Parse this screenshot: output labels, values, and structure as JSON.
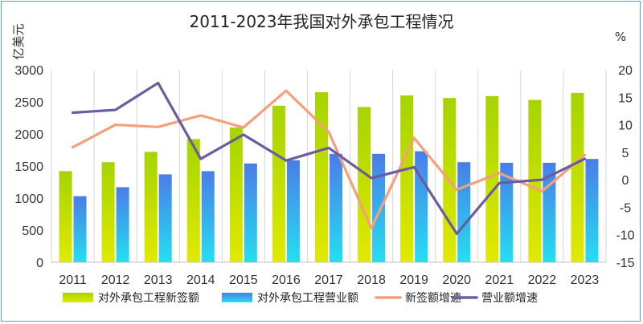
{
  "chart_data": {
    "type": "bar",
    "title": "2011-2023年我国对外承包工程情况",
    "y_left_label": "亿美元",
    "y_right_label": "%",
    "categories": [
      "2011",
      "2012",
      "2013",
      "2014",
      "2015",
      "2016",
      "2017",
      "2018",
      "2019",
      "2020",
      "2021",
      "2022",
      "2023"
    ],
    "y_left_ticks": [
      "0",
      "500",
      "1000",
      "1500",
      "2000",
      "2500",
      "3000"
    ],
    "y_right_ticks": [
      "-15",
      "-10",
      "-5",
      "0",
      "5",
      "10",
      "15",
      "20"
    ],
    "ylim_left": [
      0,
      3000
    ],
    "ylim_right": [
      -15,
      20
    ],
    "grid": "vertical",
    "legend_position": "bottom",
    "series": [
      {
        "name": "对外承包工程新签额",
        "type": "bar",
        "axis": "left",
        "color": "#a8d400",
        "values": [
          1420,
          1560,
          1720,
          1920,
          2100,
          2440,
          2650,
          2420,
          2600,
          2560,
          2590,
          2530,
          2640
        ]
      },
      {
        "name": "对外承包工程营业额",
        "type": "bar",
        "axis": "left",
        "color": "#4a90e2",
        "values": [
          1030,
          1170,
          1370,
          1420,
          1540,
          1590,
          1690,
          1690,
          1730,
          1560,
          1550,
          1550,
          1610
        ]
      },
      {
        "name": "新签额增速",
        "type": "line",
        "axis": "right",
        "color": "#f4a07a",
        "values": [
          5.9,
          10.0,
          9.6,
          11.7,
          9.5,
          16.2,
          8.7,
          -8.8,
          7.6,
          -1.8,
          1.2,
          -2.1,
          4.5
        ]
      },
      {
        "name": "营业额增速",
        "type": "line",
        "axis": "right",
        "color": "#6e5a9e",
        "values": [
          12.2,
          12.7,
          17.6,
          3.8,
          8.2,
          3.5,
          5.8,
          0.3,
          2.3,
          -9.8,
          -0.6,
          0.0,
          3.8
        ]
      }
    ]
  }
}
